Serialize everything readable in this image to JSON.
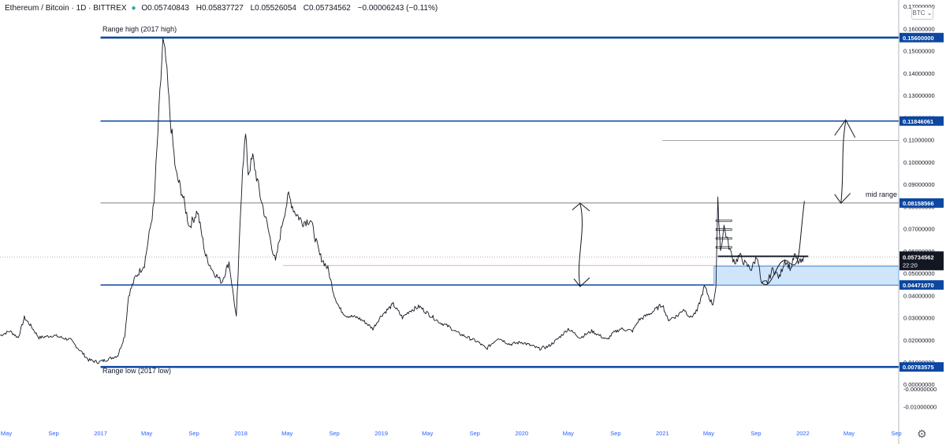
{
  "header": {
    "symbol": "Ethereum / Bitcoin · 1D · BITTREX",
    "open_label": "O",
    "open": "0.05740843",
    "high_label": "H",
    "high": "0.05837727",
    "low_label": "L",
    "low": "0.05526054",
    "close_label": "C",
    "close": "0.05734562",
    "change": "−0.00006243 (−0.11%)"
  },
  "currency_button": "BTC ⌄",
  "colors": {
    "price": "#131722",
    "range_line": "#0d47a1",
    "level_line": "#1e4e8c",
    "thin_line": "#8a8a8a",
    "tag_bg": "#0d47a1",
    "current_tag_bg": "#131722",
    "box_fill": "#cfe5fb",
    "box_stroke": "#5b9bd5",
    "pink_line": "#e26f9d",
    "axis_text": "#131722",
    "month_text": "#2962ff"
  },
  "chart_data": {
    "type": "line",
    "title": "Ethereum / Bitcoin · 1D · BITTREX",
    "ylim": [
      -0.0155,
      0.1715
    ],
    "x_ticks": [
      "May",
      "Sep",
      "2017",
      "May",
      "Sep",
      "2018",
      "May",
      "Sep",
      "2019",
      "May",
      "Sep",
      "2020",
      "May",
      "Sep",
      "2021",
      "May",
      "Sep",
      "2022",
      "May",
      "Sep"
    ],
    "y_ticks": [
      "0.17000000",
      "0.16000000",
      "0.15000000",
      "0.14000000",
      "0.13000000",
      "0.12000000",
      "0.11000000",
      "0.10000000",
      "0.09000000",
      "0.08000000",
      "0.07000000",
      "0.06000000",
      "0.05000000",
      "0.04000000",
      "0.03000000",
      "0.02000000",
      "0.01000000",
      "0.00000000",
      "-0.00000000",
      "-0.01000000"
    ],
    "price_series": {
      "name": "",
      "x": [
        "2016-04-15",
        "2016-05-10",
        "2016-06-01",
        "2016-06-17",
        "2016-07-01",
        "2016-07-25",
        "2016-09-01",
        "2016-10-15",
        "2016-12-01",
        "2016-12-25",
        "2017-01-15",
        "2017-02-15",
        "2017-03-05",
        "2017-03-15",
        "2017-04-01",
        "2017-04-25",
        "2017-05-20",
        "2017-06-12",
        "2017-06-20",
        "2017-07-01",
        "2017-07-16",
        "2017-08-01",
        "2017-08-20",
        "2017-09-10",
        "2017-10-01",
        "2017-10-20",
        "2017-11-12",
        "2017-12-01",
        "2017-12-20",
        "2018-01-05",
        "2018-01-13",
        "2018-01-20",
        "2018-02-01",
        "2018-02-20",
        "2018-03-10",
        "2018-03-25",
        "2018-04-01",
        "2018-04-20",
        "2018-05-05",
        "2018-05-20",
        "2018-06-10",
        "2018-07-01",
        "2018-07-25",
        "2018-08-15",
        "2018-09-01",
        "2018-09-15",
        "2018-10-01",
        "2018-11-01",
        "2018-11-20",
        "2018-12-10",
        "2019-01-01",
        "2019-02-01",
        "2019-02-25",
        "2019-03-15",
        "2019-04-10",
        "2019-05-01",
        "2019-06-01",
        "2019-06-25",
        "2019-07-20",
        "2019-08-15",
        "2019-09-10",
        "2019-10-01",
        "2019-11-01",
        "2019-12-01",
        "2020-01-01",
        "2020-02-01",
        "2020-02-15",
        "2020-03-10",
        "2020-04-01",
        "2020-05-01",
        "2020-06-01",
        "2020-07-01",
        "2020-08-10",
        "2020-08-25",
        "2020-09-15",
        "2020-10-15",
        "2020-11-01",
        "2020-12-01",
        "2021-01-01",
        "2021-01-15",
        "2021-02-10",
        "2021-02-25",
        "2021-03-15",
        "2021-04-01",
        "2021-04-20",
        "2021-05-05",
        "2021-05-12",
        "2021-05-20",
        "2021-05-25",
        "2021-06-01",
        "2021-06-10",
        "2021-06-20",
        "2021-07-01",
        "2021-07-10",
        "2021-07-20",
        "2021-08-05",
        "2021-08-20",
        "2021-09-05",
        "2021-09-15",
        "2021-10-01",
        "2021-10-15",
        "2021-11-01",
        "2021-11-15",
        "2021-12-01",
        "2021-12-10",
        "2021-12-20",
        "2022-01-01",
        "2022-01-05"
      ],
      "y": [
        0.022,
        0.024,
        0.021,
        0.03,
        0.027,
        0.021,
        0.022,
        0.02,
        0.011,
        0.01,
        0.011,
        0.013,
        0.022,
        0.04,
        0.048,
        0.054,
        0.081,
        0.154,
        0.145,
        0.12,
        0.095,
        0.086,
        0.071,
        0.078,
        0.058,
        0.051,
        0.046,
        0.055,
        0.03,
        0.098,
        0.112,
        0.095,
        0.102,
        0.085,
        0.072,
        0.06,
        0.055,
        0.074,
        0.085,
        0.078,
        0.073,
        0.074,
        0.058,
        0.052,
        0.04,
        0.034,
        0.031,
        0.03,
        0.028,
        0.025,
        0.031,
        0.036,
        0.03,
        0.033,
        0.035,
        0.032,
        0.028,
        0.026,
        0.023,
        0.021,
        0.019,
        0.016,
        0.021,
        0.018,
        0.019,
        0.017,
        0.016,
        0.017,
        0.02,
        0.025,
        0.021,
        0.024,
        0.02,
        0.023,
        0.025,
        0.024,
        0.029,
        0.032,
        0.036,
        0.029,
        0.031,
        0.034,
        0.03,
        0.033,
        0.044,
        0.038,
        0.036,
        0.044,
        0.082,
        0.06,
        0.071,
        0.064,
        0.057,
        0.055,
        0.058,
        0.054,
        0.052,
        0.058,
        0.045,
        0.046,
        0.052,
        0.048,
        0.056,
        0.052,
        0.058,
        0.055,
        0.055,
        0.0573
      ]
    },
    "levels": [
      {
        "value": 0.156,
        "label": "0.15600000",
        "annotation": "Range high (2017 high)"
      },
      {
        "value": 0.11846061,
        "label": "0.11846061"
      },
      {
        "value": 0.08158566,
        "label": "0.08158566",
        "annotation": "mid range"
      },
      {
        "value": 0.0447107,
        "label": "0.04471070"
      },
      {
        "value": 0.00783575,
        "label": "0.00783575",
        "annotation": "Range low (2017 low)"
      }
    ],
    "secondary_lines": [
      0.1097,
      0.0535,
      0.0576
    ],
    "zone": {
      "low": 0.0447,
      "high": 0.0531,
      "from": "2021-05-15"
    },
    "current_price": {
      "value": 0.05734562,
      "label": "0.05734562",
      "countdown": "22:20"
    }
  }
}
